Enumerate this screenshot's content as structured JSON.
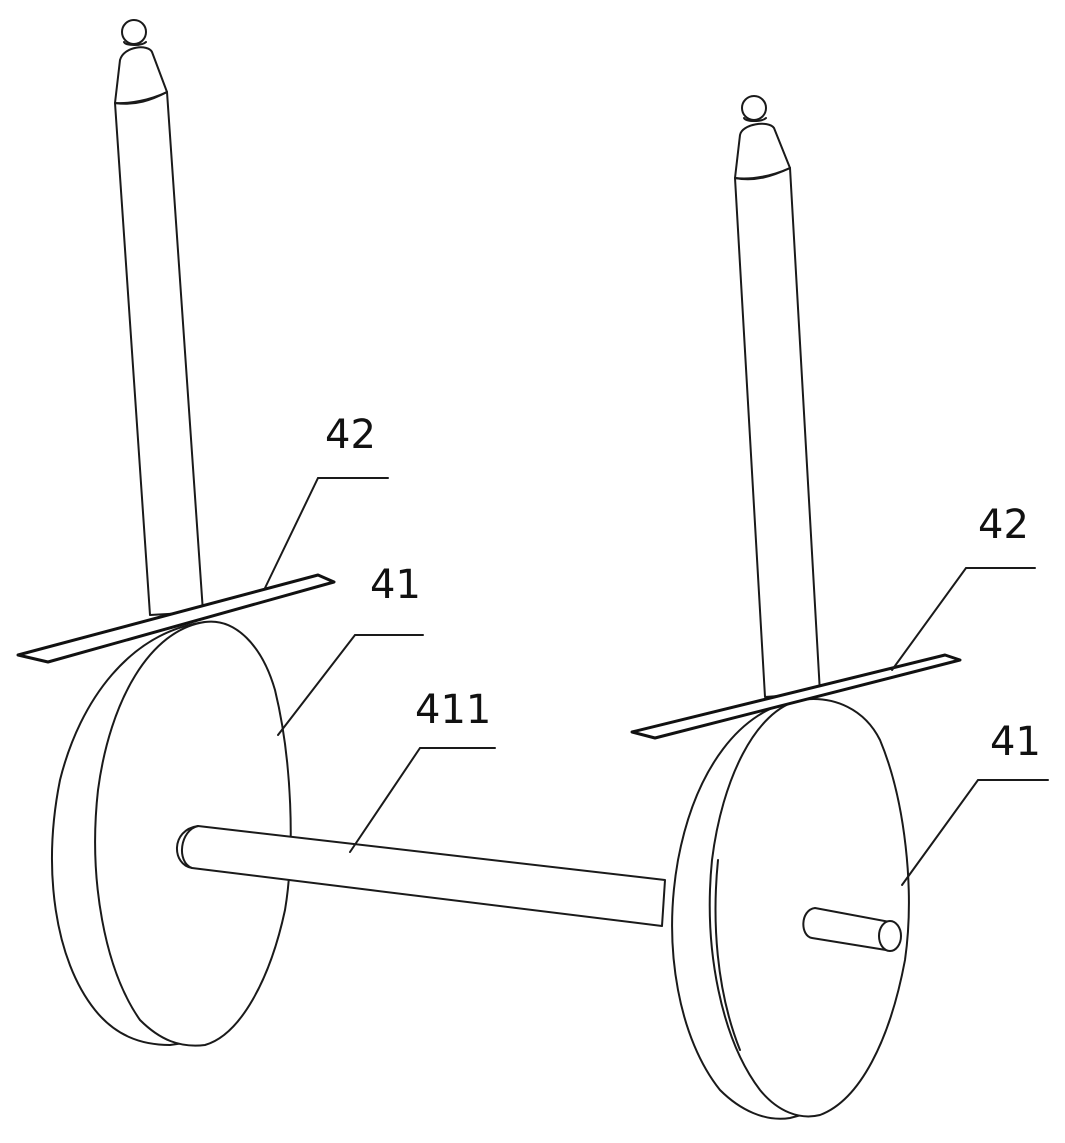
{
  "labels": {
    "rod_plate_left": "42",
    "rod_plate_right": "42",
    "wheel_left": "41",
    "wheel_right": "41",
    "axle": "411"
  }
}
